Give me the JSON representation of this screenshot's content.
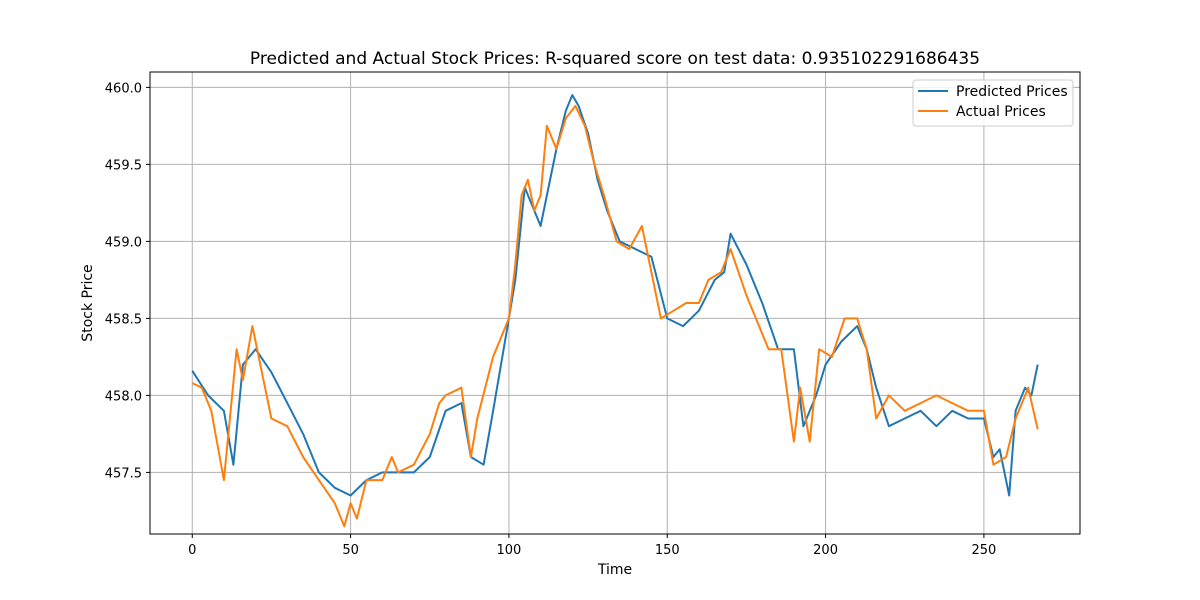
{
  "chart_data": {
    "type": "line",
    "title": "Predicted and Actual Stock Prices: R-squared score on test data: 0.935102291686435",
    "xlabel": "Time",
    "ylabel": "Stock Price",
    "xlim": [
      -13.35,
      280.35
    ],
    "ylim": [
      457.1,
      460.1
    ],
    "xticks": [
      0,
      50,
      100,
      150,
      200,
      250
    ],
    "yticks": [
      457.5,
      458.0,
      458.5,
      459.0,
      459.5,
      460.0
    ],
    "ytick_labels": [
      "457.5",
      "458.0",
      "458.5",
      "459.0",
      "459.5",
      "460.0"
    ],
    "grid": true,
    "legend_position": "upper right",
    "series": [
      {
        "name": "Predicted Prices",
        "color": "#1f77b4",
        "points": [
          [
            0,
            458.16
          ],
          [
            5,
            458.0
          ],
          [
            10,
            457.9
          ],
          [
            13,
            457.55
          ],
          [
            16,
            458.2
          ],
          [
            20,
            458.3
          ],
          [
            25,
            458.15
          ],
          [
            30,
            457.95
          ],
          [
            35,
            457.75
          ],
          [
            40,
            457.5
          ],
          [
            45,
            457.4
          ],
          [
            50,
            457.35
          ],
          [
            55,
            457.45
          ],
          [
            60,
            457.5
          ],
          [
            65,
            457.5
          ],
          [
            70,
            457.5
          ],
          [
            75,
            457.6
          ],
          [
            80,
            457.9
          ],
          [
            85,
            457.95
          ],
          [
            88,
            457.6
          ],
          [
            92,
            457.55
          ],
          [
            95,
            457.9
          ],
          [
            100,
            458.5
          ],
          [
            102,
            458.75
          ],
          [
            105,
            459.35
          ],
          [
            108,
            459.2
          ],
          [
            110,
            459.1
          ],
          [
            115,
            459.6
          ],
          [
            118,
            459.85
          ],
          [
            120,
            459.95
          ],
          [
            122,
            459.88
          ],
          [
            125,
            459.7
          ],
          [
            128,
            459.4
          ],
          [
            131,
            459.2
          ],
          [
            135,
            459.0
          ],
          [
            140,
            458.95
          ],
          [
            145,
            458.9
          ],
          [
            150,
            458.5
          ],
          [
            155,
            458.45
          ],
          [
            160,
            458.55
          ],
          [
            165,
            458.75
          ],
          [
            168,
            458.8
          ],
          [
            170,
            459.05
          ],
          [
            175,
            458.85
          ],
          [
            180,
            458.6
          ],
          [
            185,
            458.3
          ],
          [
            190,
            458.3
          ],
          [
            193,
            457.8
          ],
          [
            197,
            458.0
          ],
          [
            200,
            458.2
          ],
          [
            205,
            458.35
          ],
          [
            210,
            458.45
          ],
          [
            213,
            458.3
          ],
          [
            216,
            458.05
          ],
          [
            220,
            457.8
          ],
          [
            225,
            457.85
          ],
          [
            230,
            457.9
          ],
          [
            235,
            457.8
          ],
          [
            240,
            457.9
          ],
          [
            245,
            457.85
          ],
          [
            250,
            457.85
          ],
          [
            253,
            457.6
          ],
          [
            255,
            457.65
          ],
          [
            258,
            457.35
          ],
          [
            260,
            457.9
          ],
          [
            263,
            458.05
          ],
          [
            265,
            458.0
          ],
          [
            267,
            458.2
          ]
        ]
      },
      {
        "name": "Actual Prices",
        "color": "#ff7f0e",
        "points": [
          [
            0,
            458.08
          ],
          [
            3,
            458.05
          ],
          [
            6,
            457.9
          ],
          [
            10,
            457.45
          ],
          [
            14,
            458.3
          ],
          [
            16,
            458.1
          ],
          [
            19,
            458.45
          ],
          [
            22,
            458.15
          ],
          [
            25,
            457.85
          ],
          [
            30,
            457.8
          ],
          [
            35,
            457.6
          ],
          [
            40,
            457.45
          ],
          [
            45,
            457.3
          ],
          [
            48,
            457.15
          ],
          [
            50,
            457.3
          ],
          [
            52,
            457.2
          ],
          [
            55,
            457.45
          ],
          [
            60,
            457.45
          ],
          [
            63,
            457.6
          ],
          [
            65,
            457.5
          ],
          [
            70,
            457.55
          ],
          [
            75,
            457.75
          ],
          [
            78,
            457.95
          ],
          [
            80,
            458.0
          ],
          [
            85,
            458.05
          ],
          [
            88,
            457.6
          ],
          [
            90,
            457.85
          ],
          [
            95,
            458.25
          ],
          [
            100,
            458.5
          ],
          [
            102,
            458.85
          ],
          [
            104,
            459.3
          ],
          [
            106,
            459.4
          ],
          [
            108,
            459.2
          ],
          [
            110,
            459.3
          ],
          [
            112,
            459.75
          ],
          [
            115,
            459.6
          ],
          [
            118,
            459.8
          ],
          [
            121,
            459.88
          ],
          [
            124,
            459.75
          ],
          [
            127,
            459.5
          ],
          [
            130,
            459.3
          ],
          [
            134,
            459.0
          ],
          [
            138,
            458.95
          ],
          [
            142,
            459.1
          ],
          [
            145,
            458.8
          ],
          [
            148,
            458.5
          ],
          [
            152,
            458.55
          ],
          [
            156,
            458.6
          ],
          [
            160,
            458.6
          ],
          [
            163,
            458.75
          ],
          [
            167,
            458.8
          ],
          [
            170,
            458.95
          ],
          [
            175,
            458.65
          ],
          [
            178,
            458.5
          ],
          [
            182,
            458.3
          ],
          [
            186,
            458.3
          ],
          [
            190,
            457.7
          ],
          [
            192,
            458.05
          ],
          [
            195,
            457.7
          ],
          [
            198,
            458.3
          ],
          [
            202,
            458.25
          ],
          [
            206,
            458.5
          ],
          [
            210,
            458.5
          ],
          [
            213,
            458.3
          ],
          [
            216,
            457.85
          ],
          [
            220,
            458.0
          ],
          [
            225,
            457.9
          ],
          [
            230,
            457.95
          ],
          [
            235,
            458.0
          ],
          [
            240,
            457.95
          ],
          [
            245,
            457.9
          ],
          [
            250,
            457.9
          ],
          [
            253,
            457.55
          ],
          [
            257,
            457.6
          ],
          [
            260,
            457.85
          ],
          [
            264,
            458.05
          ],
          [
            267,
            457.78
          ]
        ]
      }
    ]
  }
}
